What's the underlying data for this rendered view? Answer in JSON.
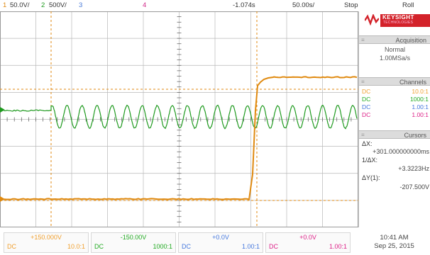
{
  "topbar": {
    "ch1": {
      "num": "1",
      "scale": "50.0V/"
    },
    "ch2": {
      "num": "2",
      "scale": "500V/"
    },
    "ch3": {
      "num": "3"
    },
    "ch4": {
      "num": "4"
    },
    "time_offset": "-1.074s",
    "time_scale": "50.00s/",
    "run_state": "Stop",
    "mode": "Roll"
  },
  "brand": {
    "name": "KEYSIGHT",
    "sub": "TECHNOLOGIES"
  },
  "acquisition": {
    "header": "Acquisition",
    "mode": "Normal",
    "rate": "1.00MSa/s"
  },
  "channels": {
    "header": "Channels",
    "rows": [
      {
        "coupling": "DC",
        "probe": "10.0:1",
        "color": "#f0a030"
      },
      {
        "coupling": "DC",
        "probe": "1000:1",
        "color": "#22aa22"
      },
      {
        "coupling": "DC",
        "probe": "1.00:1",
        "color": "#4477dd"
      },
      {
        "coupling": "DC",
        "probe": "1.00:1",
        "color": "#dd2288"
      }
    ]
  },
  "cursors": {
    "header": "Cursors",
    "dx_label": "ΔX:",
    "dx_value": "+301.000000000ms",
    "inv_dx_label": "1/ΔX:",
    "inv_dx_value": "+3.3223Hz",
    "dy_label": "ΔY(1):",
    "dy_value": "-207.500V"
  },
  "bottom": [
    {
      "offset": "+150.000V",
      "coupling": "DC",
      "probe": "10.0:1",
      "color": "#f0a030"
    },
    {
      "offset": "-150.00V",
      "coupling": "DC",
      "probe": "1000:1",
      "color": "#22aa22"
    },
    {
      "offset": "+0.0V",
      "coupling": "DC",
      "probe": "1.00:1",
      "color": "#4477dd"
    },
    {
      "offset": "+0.0V",
      "coupling": "DC",
      "probe": "1.00:1",
      "color": "#dd2288"
    }
  ],
  "clock": {
    "time": "10:41 AM",
    "date": "Sep 25, 2015"
  },
  "colors": {
    "ch1": "#e08a10",
    "ch2": "#1f9a1f",
    "ch3": "#4a7ad8",
    "ch4": "#d02888",
    "grid": "#b8b8b8"
  }
}
